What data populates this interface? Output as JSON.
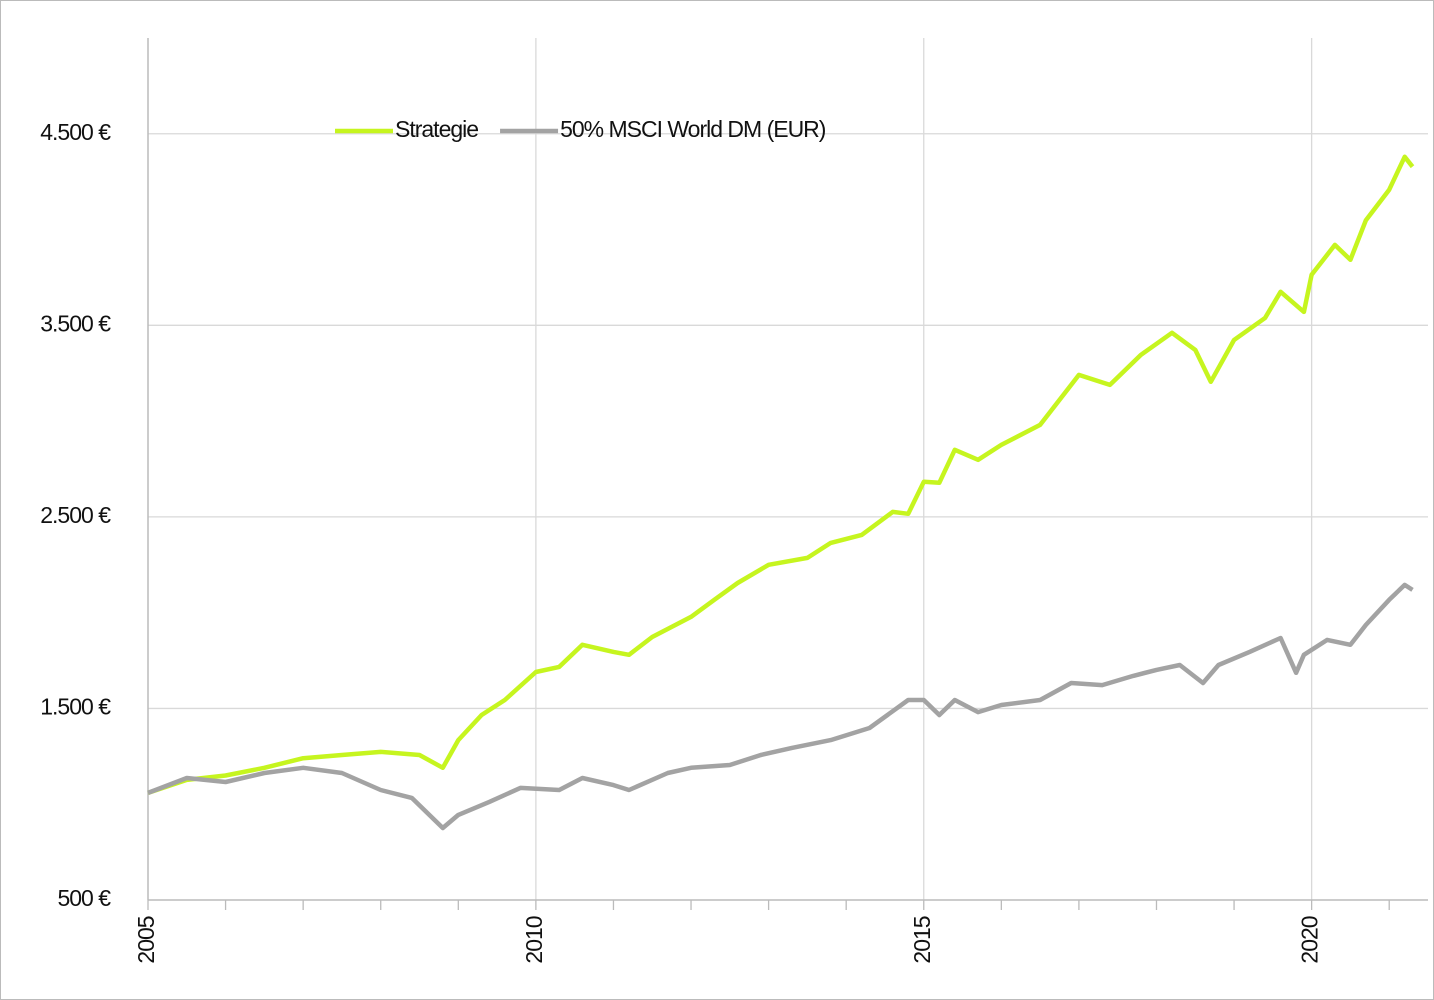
{
  "chart_data": {
    "type": "line",
    "xlim": [
      2005,
      2021.5
    ],
    "xticks": [
      2005,
      2010,
      2015,
      2020
    ],
    "xminorticks": [
      2006,
      2007,
      2008,
      2009,
      2011,
      2012,
      2013,
      2014,
      2016,
      2017,
      2018,
      2019,
      2021
    ],
    "ylim": [
      500,
      5000
    ],
    "yticks": [
      {
        "value": 500,
        "label": "500 €"
      },
      {
        "value": 1500,
        "label": "1.500 €"
      },
      {
        "value": 2500,
        "label": "2.500 €"
      },
      {
        "value": 3500,
        "label": "3.500 €"
      },
      {
        "value": 4500,
        "label": "4.500 €"
      }
    ],
    "grid": true,
    "legend": "top",
    "series": [
      {
        "name": "Strategie",
        "color": "#c6f51f",
        "x": [
          2005.0,
          2005.5,
          2006.0,
          2006.5,
          2007.0,
          2007.5,
          2008.0,
          2008.5,
          2008.8,
          2009.0,
          2009.3,
          2009.6,
          2010.0,
          2010.3,
          2010.6,
          2011.0,
          2011.2,
          2011.5,
          2012.0,
          2012.3,
          2012.6,
          2013.0,
          2013.5,
          2013.8,
          2014.2,
          2014.6,
          2014.8,
          2015.0,
          2015.2,
          2015.4,
          2015.7,
          2016.0,
          2016.5,
          2017.0,
          2017.4,
          2017.8,
          2018.2,
          2018.5,
          2018.7,
          2019.0,
          2019.4,
          2019.6,
          2019.9,
          2020.0,
          2020.3,
          2020.5,
          2020.7,
          2021.0,
          2021.2,
          2021.3
        ],
        "values": [
          1059,
          1127,
          1150,
          1190,
          1240,
          1257,
          1273,
          1257,
          1190,
          1335,
          1466,
          1544,
          1690,
          1717,
          1832,
          1795,
          1780,
          1873,
          1978,
          2067,
          2155,
          2250,
          2286,
          2364,
          2406,
          2526,
          2516,
          2683,
          2678,
          2850,
          2798,
          2876,
          2980,
          3241,
          3189,
          3346,
          3461,
          3372,
          3205,
          3424,
          3539,
          3675,
          3570,
          3764,
          3920,
          3842,
          4049,
          4208,
          4380,
          4328
        ]
      },
      {
        "name": "50% MSCI World DM (EUR)",
        "color": "#a3a3a3",
        "x": [
          2005.0,
          2005.5,
          2006.0,
          2006.5,
          2007.0,
          2007.5,
          2008.0,
          2008.4,
          2008.8,
          2009.0,
          2009.4,
          2009.8,
          2010.3,
          2010.6,
          2011.0,
          2011.2,
          2011.7,
          2012.0,
          2012.5,
          2012.9,
          2013.3,
          2013.8,
          2014.3,
          2014.8,
          2015.0,
          2015.2,
          2015.4,
          2015.7,
          2016.0,
          2016.5,
          2016.9,
          2017.3,
          2017.7,
          2018.0,
          2018.3,
          2018.6,
          2018.8,
          2019.2,
          2019.6,
          2019.8,
          2019.9,
          2020.2,
          2020.5,
          2020.7,
          2021.0,
          2021.2,
          2021.3
        ],
        "values": [
          1059,
          1137,
          1116,
          1163,
          1190,
          1163,
          1074,
          1033,
          876,
          944,
          1012,
          1085,
          1074,
          1137,
          1100,
          1074,
          1163,
          1190,
          1205,
          1257,
          1294,
          1335,
          1398,
          1544,
          1544,
          1466,
          1544,
          1481,
          1518,
          1544,
          1633,
          1622,
          1670,
          1701,
          1727,
          1633,
          1727,
          1795,
          1868,
          1686,
          1780,
          1858,
          1832,
          1936,
          2067,
          2145,
          2119
        ]
      }
    ]
  }
}
